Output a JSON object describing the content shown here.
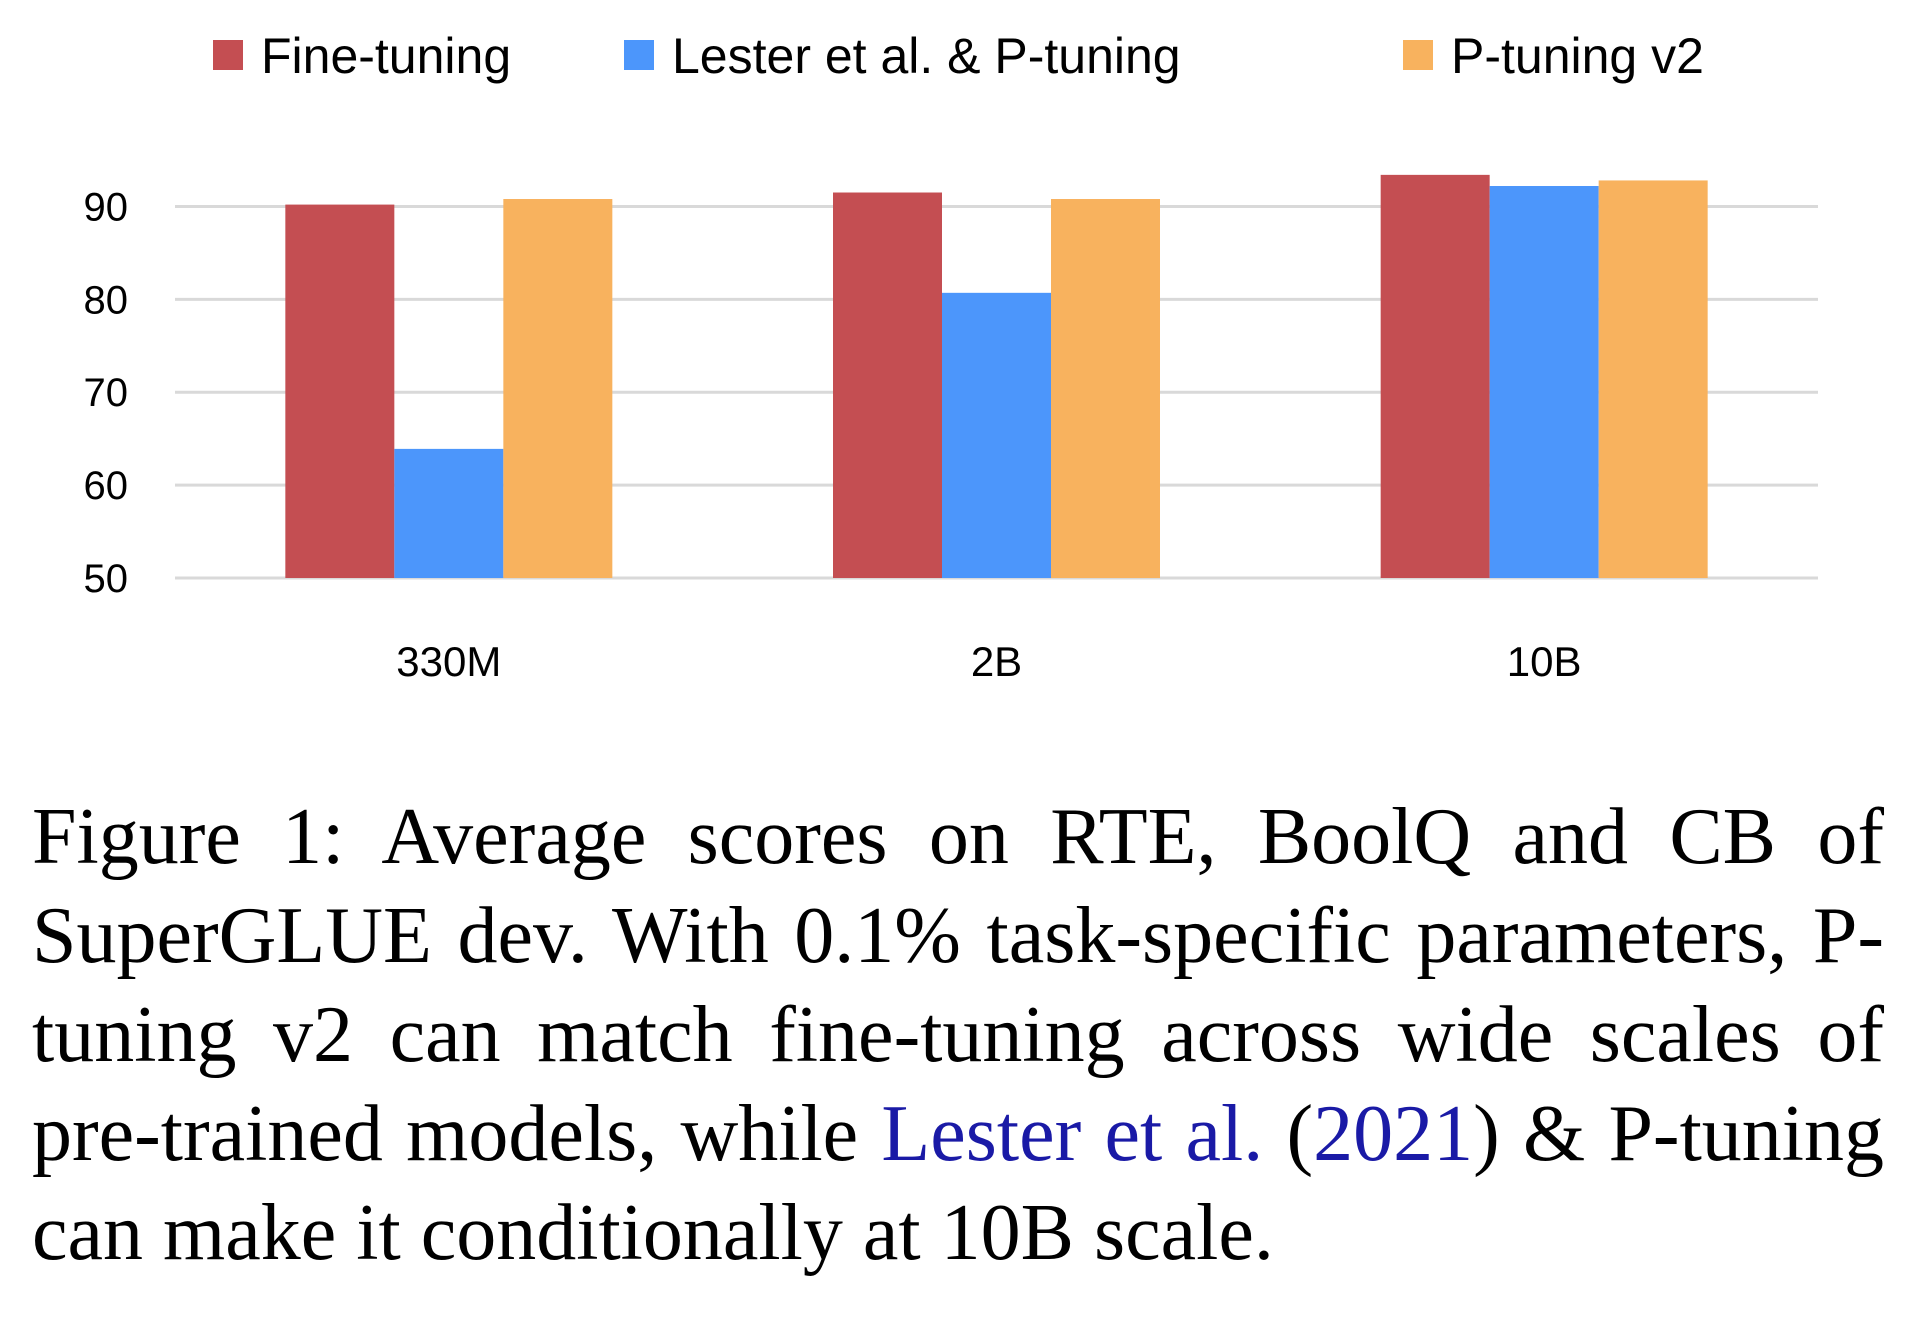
{
  "chart_data": {
    "type": "bar",
    "categories": [
      "330M",
      "2B",
      "10B"
    ],
    "series": [
      {
        "name": "Fine-tuning",
        "color": "#c44e52",
        "values": [
          90.2,
          91.5,
          93.4
        ]
      },
      {
        "name": "Lester et al. & P-tuning",
        "color": "#4c96fb",
        "values": [
          63.9,
          80.7,
          92.2
        ]
      },
      {
        "name": "P-tuning v2",
        "color": "#f8b25e",
        "values": [
          90.8,
          90.8,
          92.8
        ]
      }
    ],
    "ylim": [
      50,
      95
    ],
    "yticks": [
      50,
      60,
      70,
      80,
      90
    ],
    "grid": true,
    "gridline_color": "#d9d9d9",
    "legend_position": "top"
  },
  "caption": {
    "label": "Figure 1:",
    "text_1": "Average scores on RTE, BoolQ and CB of SuperGLUE dev. With 0.1% task-specific parameters, P-tuning v2 can match fine-tuning across wide scales of pre-trained models, while",
    "cite_author": "Lester et al.",
    "cite_open": "(",
    "cite_year": "2021",
    "cite_close": ")",
    "text_2": "& P-tuning can make it conditionally at 10B scale."
  }
}
